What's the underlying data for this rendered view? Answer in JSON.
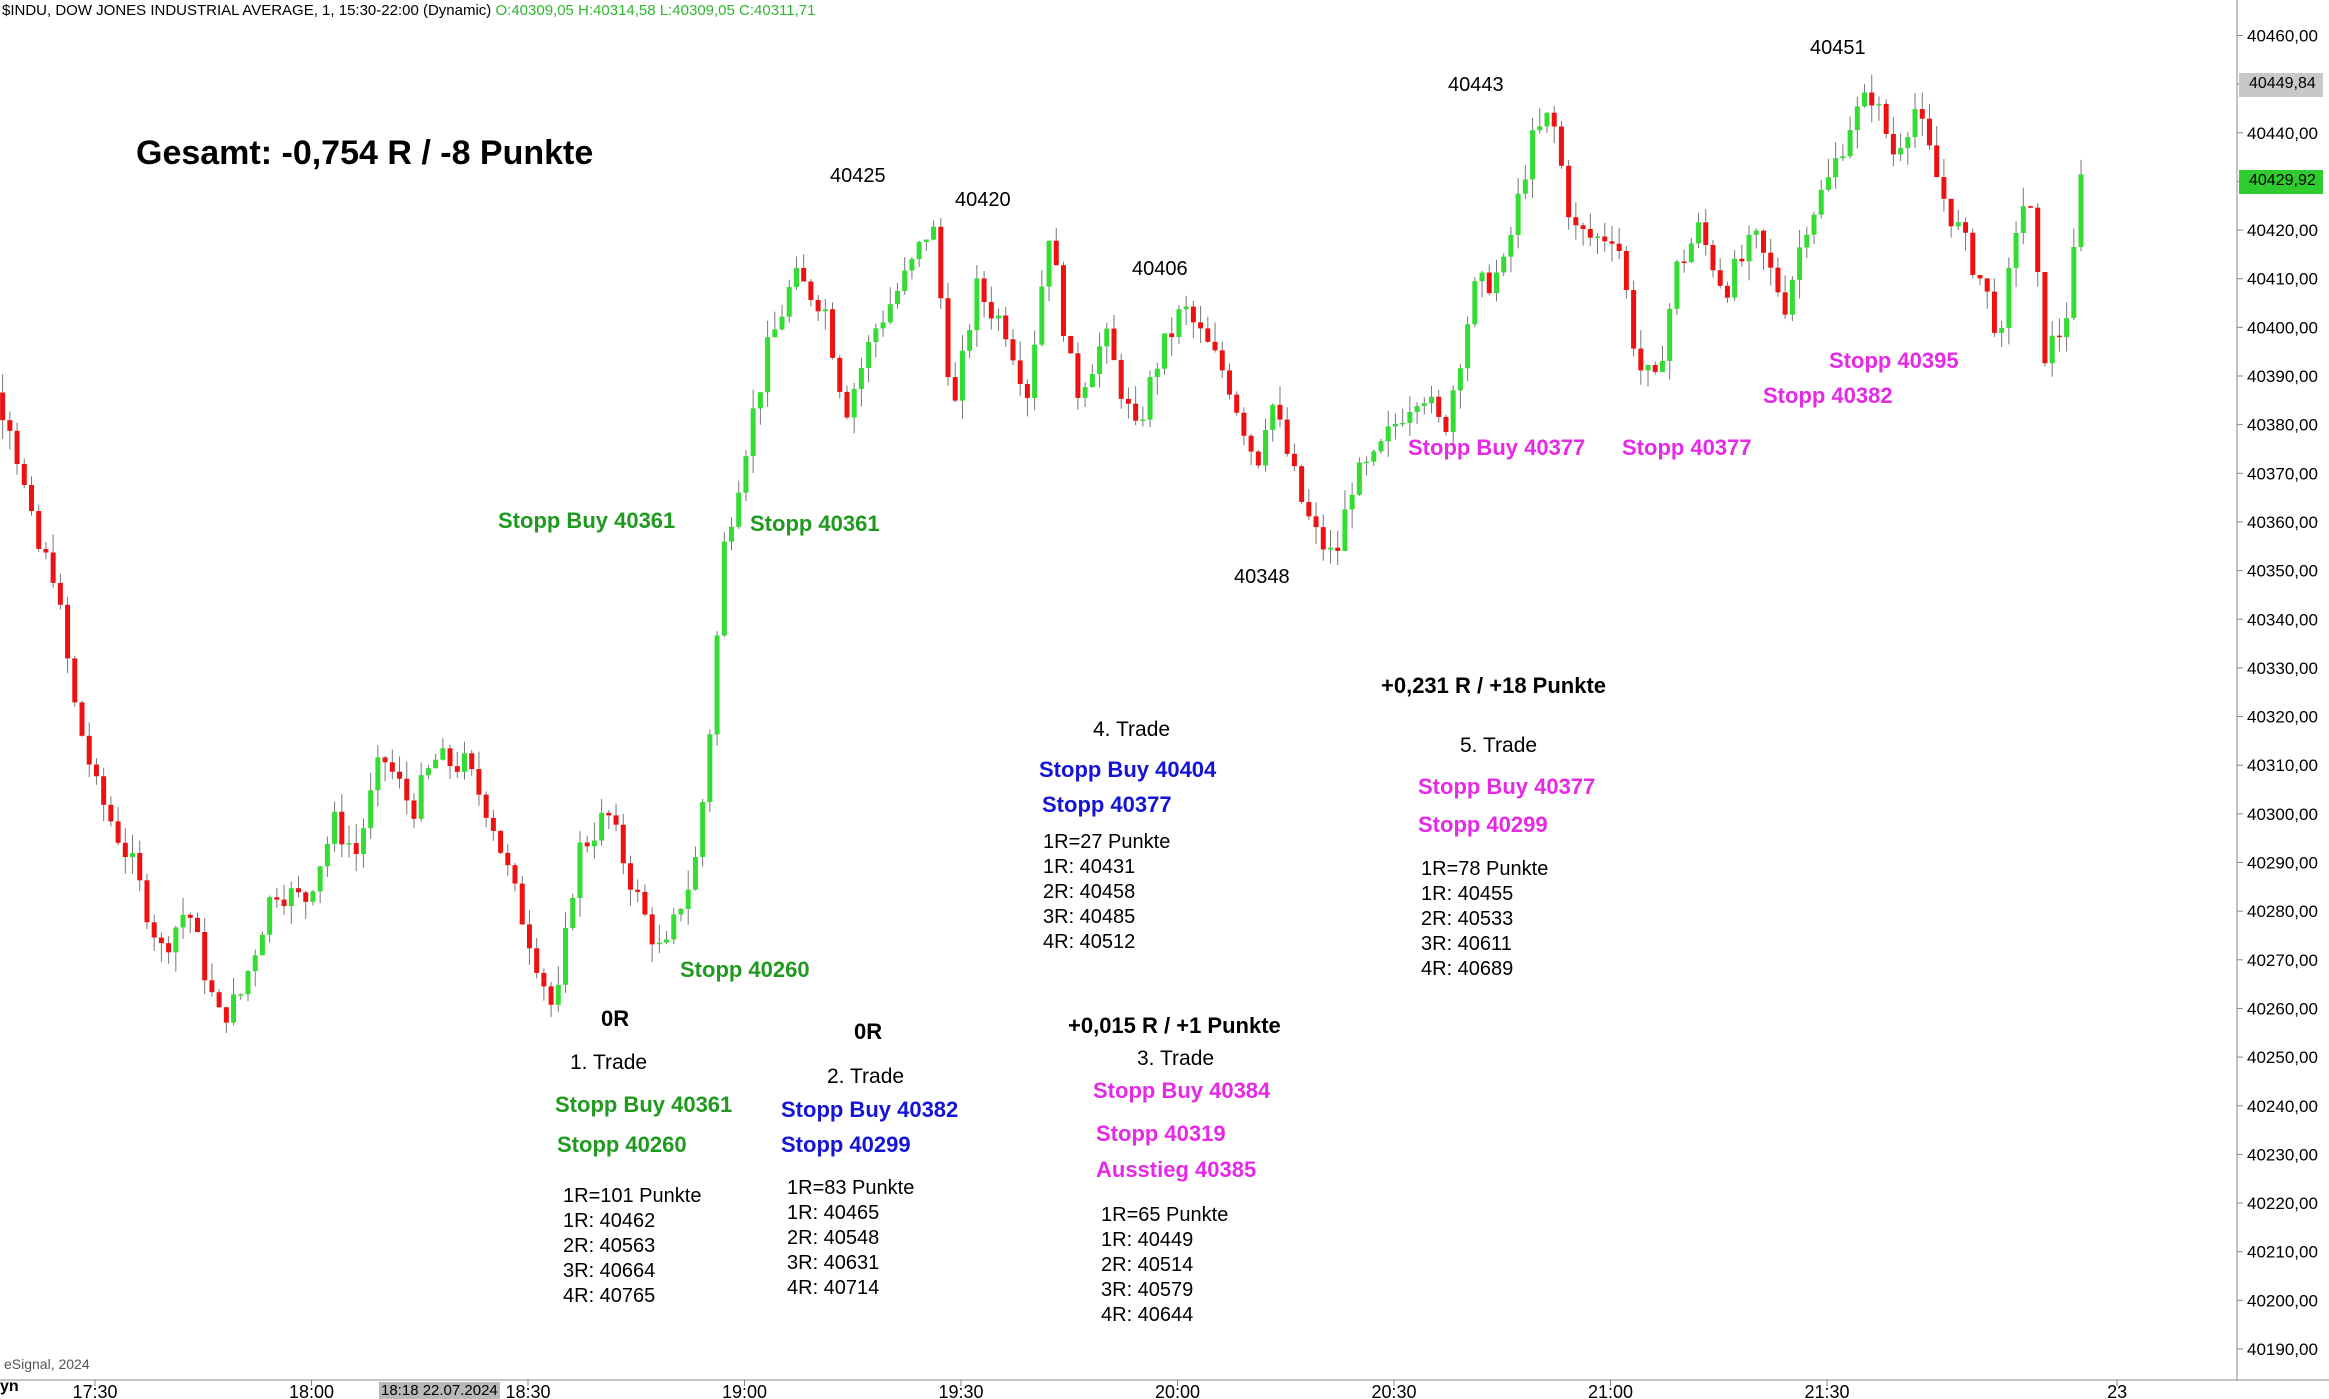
{
  "header": {
    "title": "$INDU, DOW JONES INDUSTRIAL AVERAGE, 1, 15:30-22:00 (Dynamic)",
    "ohlc": "O:40309,05 H:40314,58 L:40309,05 C:40311,71"
  },
  "watermark": "eSignal, 2024",
  "corner_label": "yn",
  "crosshair_date": "18:18 22.07.2024",
  "price_tags": [
    {
      "label": "40449,84",
      "value": 40449.84,
      "bg": "#c8c8c8",
      "fg": "#000000"
    },
    {
      "label": "40429,92",
      "value": 40429.92,
      "bg": "#2ecc2e",
      "fg": "#000000"
    }
  ],
  "summary": "Gesamt: -0,754 R / -8 Punkte",
  "peaks": [
    {
      "text": "40425"
    },
    {
      "text": "40420"
    },
    {
      "text": "40406"
    },
    {
      "text": "40348"
    },
    {
      "text": "40443"
    },
    {
      "text": "40451"
    }
  ],
  "trades": [
    {
      "result": "0R",
      "title": "1. Trade",
      "entry": "Stopp Buy 40361",
      "stop": "Stopp 40260",
      "exit": "",
      "lines": [
        "1R=101 Punkte",
        "1R: 40462",
        "2R: 40563",
        "3R: 40664",
        "4R: 40765"
      ]
    },
    {
      "result": "0R",
      "title": "2. Trade",
      "entry": "Stopp Buy 40382",
      "stop": "Stopp 40299",
      "exit": "",
      "lines": [
        "1R=83 Punkte",
        "1R: 40465",
        "2R: 40548",
        "3R: 40631",
        "4R: 40714"
      ]
    },
    {
      "result": "+0,015 R / +1 Punkte",
      "title": "3. Trade",
      "entry": "Stopp Buy 40384",
      "stop": "Stopp 40319",
      "exit": "Ausstieg 40385",
      "lines": [
        "1R=65 Punkte",
        "1R: 40449",
        "2R: 40514",
        "3R: 40579",
        "4R: 40644"
      ]
    },
    {
      "result": "",
      "title": "4. Trade",
      "entry": "Stopp Buy 40404",
      "stop": "Stopp 40377",
      "exit": "",
      "lines": [
        "1R=27 Punkte",
        "1R: 40431",
        "2R: 40458",
        "3R: 40485",
        "4R: 40512"
      ]
    },
    {
      "result": "+0,231 R / +18 Punkte",
      "title": "5. Trade",
      "entry": "Stopp Buy 40377",
      "stop": "Stopp 40299",
      "exit": "",
      "lines": [
        "1R=78 Punkte",
        "1R: 40455",
        "2R: 40533",
        "3R: 40611",
        "4R: 40689"
      ]
    }
  ],
  "chart_labels": [
    {
      "text": "Stopp Buy 40361",
      "color": "green"
    },
    {
      "text": "Stopp 40361",
      "color": "green"
    },
    {
      "text": "Stopp 40260",
      "color": "green"
    },
    {
      "text": "Stopp Buy 40377",
      "color": "magenta"
    },
    {
      "text": "Stopp 40377",
      "color": "magenta"
    },
    {
      "text": "Stopp 40395",
      "color": "magenta"
    },
    {
      "text": "Stopp 40382",
      "color": "magenta"
    }
  ],
  "colors": {
    "up": "#33dd33",
    "down": "#ee1111",
    "green_text": "#1f9a1f",
    "blue_text": "#1414d8",
    "magenta_text": "#e629e6"
  },
  "chart_data": {
    "type": "candlestick",
    "title": "$INDU, DOW JONES INDUSTRIAL AVERAGE, 1, 15:30-22:00 (Dynamic)",
    "ylim": [
      40185,
      40463
    ],
    "y_ticks": [
      "40190,00",
      "40200,00",
      "40210,00",
      "40220,00",
      "40230,00",
      "40240,00",
      "40250,00",
      "40260,00",
      "40270,00",
      "40280,00",
      "40290,00",
      "40300,00",
      "40310,00",
      "40320,00",
      "40330,00",
      "40340,00",
      "40350,00",
      "40360,00",
      "40370,00",
      "40380,00",
      "40390,00",
      "40400,00",
      "40410,00",
      "40420,00",
      "40430,00",
      "40440,00",
      "40450,00",
      "40460,00"
    ],
    "x_ticks": [
      "17:30",
      "18:00",
      "18:30",
      "19:00",
      "19:30",
      "20:00",
      "20:30",
      "21:00",
      "21:30",
      "23"
    ],
    "price_path": [
      [
        17.17,
        40384
      ],
      [
        17.25,
        40392
      ],
      [
        17.32,
        40381
      ],
      [
        17.38,
        40355
      ],
      [
        17.42,
        40350
      ],
      [
        17.47,
        40322
      ],
      [
        17.52,
        40305
      ],
      [
        17.6,
        40290
      ],
      [
        17.67,
        40272
      ],
      [
        17.73,
        40281
      ],
      [
        17.8,
        40258
      ],
      [
        17.85,
        40262
      ],
      [
        17.93,
        40285
      ],
      [
        18.0,
        40282
      ],
      [
        18.07,
        40298
      ],
      [
        18.12,
        40292
      ],
      [
        18.18,
        40312
      ],
      [
        18.25,
        40301
      ],
      [
        18.3,
        40311
      ],
      [
        18.37,
        40310
      ],
      [
        18.43,
        40300
      ],
      [
        18.48,
        40285
      ],
      [
        18.53,
        40272
      ],
      [
        18.58,
        40258
      ],
      [
        18.63,
        40292
      ],
      [
        18.7,
        40300
      ],
      [
        18.78,
        40280
      ],
      [
        18.83,
        40270
      ],
      [
        18.87,
        40282
      ],
      [
        18.9,
        40288
      ],
      [
        18.93,
        40310
      ],
      [
        18.97,
        40355
      ],
      [
        19.02,
        40376
      ],
      [
        19.07,
        40395
      ],
      [
        19.13,
        40410
      ],
      [
        19.2,
        40405
      ],
      [
        19.25,
        40383
      ],
      [
        19.32,
        40400
      ],
      [
        19.4,
        40412
      ],
      [
        19.45,
        40422
      ],
      [
        19.5,
        40382
      ],
      [
        19.55,
        40408
      ],
      [
        19.62,
        40400
      ],
      [
        19.67,
        40387
      ],
      [
        19.72,
        40420
      ],
      [
        19.78,
        40386
      ],
      [
        19.85,
        40398
      ],
      [
        19.92,
        40378
      ],
      [
        19.97,
        40393
      ],
      [
        20.03,
        40404
      ],
      [
        20.1,
        40394
      ],
      [
        20.13,
        40390
      ],
      [
        20.2,
        40372
      ],
      [
        20.23,
        40386
      ],
      [
        20.3,
        40365
      ],
      [
        20.33,
        40358
      ],
      [
        20.38,
        40352
      ],
      [
        20.42,
        40368
      ],
      [
        20.47,
        40372
      ],
      [
        20.53,
        40382
      ],
      [
        20.58,
        40388
      ],
      [
        20.63,
        40378
      ],
      [
        20.7,
        40407
      ],
      [
        20.77,
        40412
      ],
      [
        20.83,
        40437
      ],
      [
        20.88,
        40444
      ],
      [
        20.93,
        40420
      ],
      [
        20.98,
        40418
      ],
      [
        21.03,
        40420
      ],
      [
        21.08,
        40392
      ],
      [
        21.12,
        40388
      ],
      [
        21.17,
        40412
      ],
      [
        21.22,
        40420
      ],
      [
        21.28,
        40408
      ],
      [
        21.35,
        40418
      ],
      [
        21.42,
        40405
      ],
      [
        21.47,
        40422
      ],
      [
        21.52,
        40430
      ],
      [
        21.57,
        40442
      ],
      [
        21.62,
        40448
      ],
      [
        21.67,
        40436
      ],
      [
        21.72,
        40445
      ],
      [
        21.78,
        40428
      ],
      [
        21.83,
        40418
      ],
      [
        21.88,
        40408
      ],
      [
        21.92,
        40397
      ],
      [
        21.95,
        40420
      ],
      [
        21.98,
        40428
      ],
      [
        22.02,
        40395
      ],
      [
        22.05,
        40398
      ],
      [
        22.08,
        40406
      ],
      [
        22.1,
        40430
      ]
    ]
  }
}
